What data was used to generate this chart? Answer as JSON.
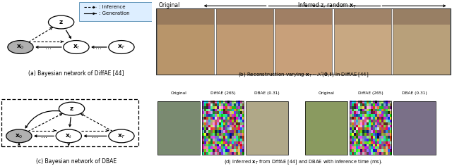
{
  "bg_color": "#ffffff",
  "panel_a_caption": "(a) Bayesian network of DiffAE [44]",
  "panel_b_caption": "(b) Reconstruction varying $\\mathbf{x}_T \\sim \\mathcal{N}(\\mathbf{0}, \\mathbf{I})$ in DiffAE [44]",
  "panel_c_caption": "(c) Bayesian network of DBAE",
  "panel_d_caption": "(d) Inferred $\\mathbf{x}_T$ from DiffAE [44] and DBAE with inference time (ms).",
  "panel_b_header_left": "Original",
  "panel_b_header_right": "Inferred z, random $\\mathbf{x}_T$",
  "panel_d_col_labels": [
    "Original",
    "DiffAE (265)",
    "DBAE (0.31)"
  ],
  "legend_inference": ": Inference",
  "legend_generation": ": Generation",
  "face_colors": [
    "#b8956a",
    "#c09a72",
    "#c8a07a",
    "#c8a882",
    "#b8a07a"
  ],
  "room_color": "#7a8a70",
  "noise_color_left": "#888888",
  "blurry_room_color": "#b0a888",
  "horse_color": "#8a9a60",
  "noise_color_right": "#888888",
  "blurry_horse_color": "#7a7088"
}
